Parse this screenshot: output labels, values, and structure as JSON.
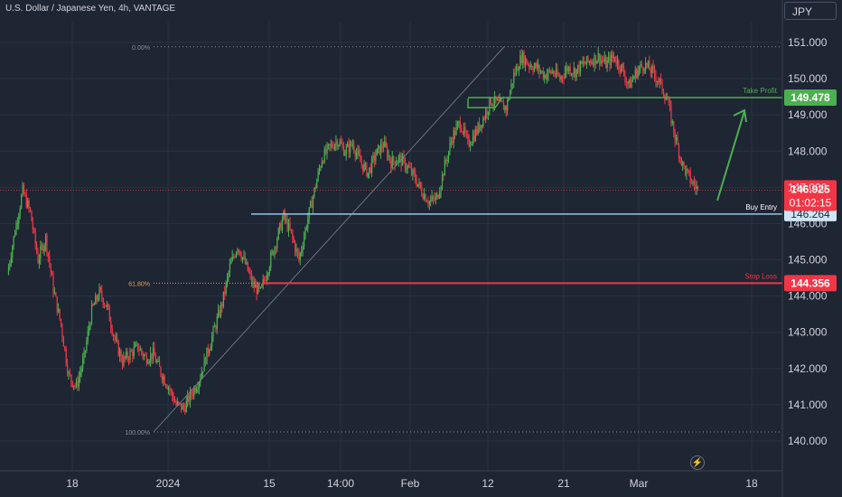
{
  "header": {
    "title": "U.S. Dollar / Japanese Yen, 4h, VANTAGE"
  },
  "currency_button": {
    "label": "JPY"
  },
  "icons": {
    "bolt": "lightning-icon"
  },
  "colors": {
    "background": "#1e2533",
    "grid": "#2a3142",
    "up": "#4caf50",
    "down": "#f23645",
    "take_profit": "#4caf50",
    "stop_loss": "#f23645",
    "buy_entry": "#8ec9f0",
    "axis_text": "#d1d4dc",
    "fib_text": "#8a8f9c"
  },
  "chart_data": {
    "type": "candlestick",
    "title": "U.S. Dollar / Japanese Yen, 4h, VANTAGE",
    "currency": "JPY",
    "ylim": [
      139.6,
      151.9
    ],
    "y_ticks": [
      140.0,
      141.0,
      142.0,
      143.0,
      144.0,
      145.0,
      146.0,
      147.0,
      148.0,
      149.0,
      150.0,
      151.0
    ],
    "y_tick_labels": [
      "140.000",
      "141.000",
      "142.000",
      "143.000",
      "144.000",
      "145.000",
      "146.000",
      "147.000",
      "148.000",
      "149.000",
      "150.000",
      "151.000"
    ],
    "x_tick_labels": [
      "18",
      "2024",
      "15",
      "14:00",
      "Feb",
      "12",
      "21",
      "Mar",
      "18"
    ],
    "fib_levels": [
      {
        "label": "0.00%",
        "price": 150.88
      },
      {
        "label": "61.80%",
        "price": 144.356
      },
      {
        "label": "100.00%",
        "price": 140.25
      }
    ],
    "levels": [
      {
        "name": "Take Profit",
        "price": 149.478,
        "price_label": "149.478"
      },
      {
        "name": "Buy Entry",
        "price": 146.264,
        "price_label": "146.264"
      },
      {
        "name": "Stop Loss",
        "price": 144.356,
        "price_label": "144.356"
      }
    ],
    "last_price": {
      "value": 146.925,
      "label": "146.925",
      "countdown": "01:02:15"
    },
    "close_path": [
      [
        0,
        144.6
      ],
      [
        6,
        145.8
      ],
      [
        12,
        146.9
      ],
      [
        18,
        146.3
      ],
      [
        24,
        145.0
      ],
      [
        30,
        145.6
      ],
      [
        36,
        144.2
      ],
      [
        42,
        143.2
      ],
      [
        48,
        141.8
      ],
      [
        54,
        141.5
      ],
      [
        60,
        142.3
      ],
      [
        66,
        143.6
      ],
      [
        72,
        144.1
      ],
      [
        78,
        143.7
      ],
      [
        84,
        142.8
      ],
      [
        90,
        142.2
      ],
      [
        96,
        142.4
      ],
      [
        102,
        142.6
      ],
      [
        108,
        142.3
      ],
      [
        114,
        142.4
      ],
      [
        120,
        141.9
      ],
      [
        126,
        141.5
      ],
      [
        132,
        141.0
      ],
      [
        138,
        140.9
      ],
      [
        144,
        141.3
      ],
      [
        150,
        141.7
      ],
      [
        156,
        142.4
      ],
      [
        162,
        143.1
      ],
      [
        168,
        143.8
      ],
      [
        174,
        144.8
      ],
      [
        180,
        145.4
      ],
      [
        186,
        144.9
      ],
      [
        192,
        144.3
      ],
      [
        198,
        144.1
      ],
      [
        204,
        144.8
      ],
      [
        210,
        145.5
      ],
      [
        216,
        146.2
      ],
      [
        222,
        145.7
      ],
      [
        228,
        145.0
      ],
      [
        234,
        146.0
      ],
      [
        240,
        146.9
      ],
      [
        246,
        147.8
      ],
      [
        252,
        148.1
      ],
      [
        258,
        148.3
      ],
      [
        264,
        148.0
      ],
      [
        270,
        148.2
      ],
      [
        276,
        147.7
      ],
      [
        282,
        147.4
      ],
      [
        288,
        147.9
      ],
      [
        294,
        148.2
      ],
      [
        300,
        147.7
      ],
      [
        306,
        147.8
      ],
      [
        312,
        147.6
      ],
      [
        318,
        147.3
      ],
      [
        324,
        146.9
      ],
      [
        330,
        146.6
      ],
      [
        336,
        146.7
      ],
      [
        342,
        147.6
      ],
      [
        348,
        148.4
      ],
      [
        354,
        148.8
      ],
      [
        360,
        148.2
      ],
      [
        366,
        148.5
      ],
      [
        372,
        148.9
      ],
      [
        378,
        149.4
      ],
      [
        384,
        149.3
      ],
      [
        390,
        149.2
      ],
      [
        396,
        150.1
      ],
      [
        402,
        150.6
      ],
      [
        408,
        150.4
      ],
      [
        414,
        150.3
      ],
      [
        420,
        150.1
      ],
      [
        426,
        150.2
      ],
      [
        432,
        150.0
      ],
      [
        438,
        150.3
      ],
      [
        444,
        150.2
      ],
      [
        450,
        150.4
      ],
      [
        456,
        150.5
      ],
      [
        462,
        150.6
      ],
      [
        468,
        150.4
      ],
      [
        474,
        150.6
      ],
      [
        480,
        150.3
      ],
      [
        486,
        149.8
      ],
      [
        492,
        150.2
      ],
      [
        498,
        150.4
      ],
      [
        504,
        150.2
      ],
      [
        510,
        149.9
      ],
      [
        516,
        149.4
      ],
      [
        522,
        148.4
      ],
      [
        528,
        147.6
      ],
      [
        534,
        147.2
      ],
      [
        540,
        146.925
      ]
    ]
  }
}
